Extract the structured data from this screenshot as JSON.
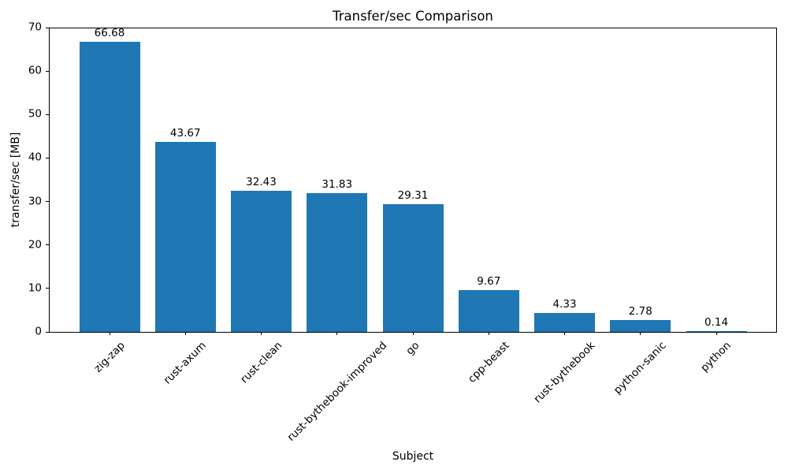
{
  "chart_data": {
    "type": "bar",
    "title": "Transfer/sec Comparison",
    "xlabel": "Subject",
    "ylabel": "transfer/sec [MB]",
    "categories": [
      "zig-zap",
      "rust-axum",
      "rust-clean",
      "rust-bythebook-improved",
      "go",
      "cpp-beast",
      "rust-bythebook",
      "python-sanic",
      "python"
    ],
    "values": [
      66.68,
      43.67,
      32.43,
      31.83,
      29.31,
      9.67,
      4.33,
      2.78,
      0.14
    ],
    "value_labels": [
      "66.68",
      "43.67",
      "32.43",
      "31.83",
      "29.31",
      "9.67",
      "4.33",
      "2.78",
      "0.14"
    ],
    "ylim": [
      0,
      70
    ],
    "yticks": [
      0,
      10,
      20,
      30,
      40,
      50,
      60,
      70
    ],
    "grid": false,
    "legend": false,
    "bar_color": "#1f77b4",
    "axis_color": "#000000",
    "background_color": "#ffffff"
  }
}
